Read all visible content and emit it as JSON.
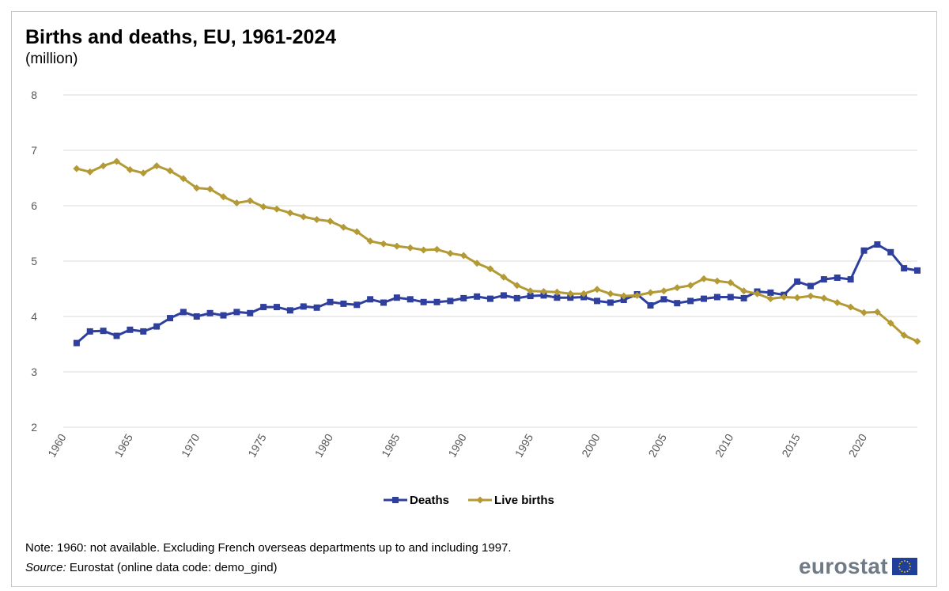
{
  "chart_data": {
    "type": "line",
    "title": "Births and deaths, EU, 1961-2024",
    "subtitle": "(million)",
    "xlabel": "",
    "ylabel": "",
    "ylim": [
      2,
      8
    ],
    "yticks": [
      2,
      3,
      4,
      5,
      6,
      7,
      8
    ],
    "xlim": [
      1960,
      2024
    ],
    "xticks": [
      1960,
      1965,
      1970,
      1975,
      1980,
      1985,
      1990,
      1995,
      2000,
      2005,
      2010,
      2015,
      2020
    ],
    "grid": "horizontal",
    "legend_position": "bottom",
    "x": [
      1961,
      1962,
      1963,
      1964,
      1965,
      1966,
      1967,
      1968,
      1969,
      1970,
      1971,
      1972,
      1973,
      1974,
      1975,
      1976,
      1977,
      1978,
      1979,
      1980,
      1981,
      1982,
      1983,
      1984,
      1985,
      1986,
      1987,
      1988,
      1989,
      1990,
      1991,
      1992,
      1993,
      1994,
      1995,
      1996,
      1997,
      1998,
      1999,
      2000,
      2001,
      2002,
      2003,
      2004,
      2005,
      2006,
      2007,
      2008,
      2009,
      2010,
      2011,
      2012,
      2013,
      2014,
      2015,
      2016,
      2017,
      2018,
      2019,
      2020,
      2021,
      2022,
      2023,
      2024
    ],
    "series": [
      {
        "name": "Deaths",
        "color": "#2e3f9e",
        "marker": "square",
        "values": [
          3.52,
          3.73,
          3.74,
          3.65,
          3.76,
          3.73,
          3.82,
          3.97,
          4.08,
          4.0,
          4.06,
          4.02,
          4.08,
          4.06,
          4.17,
          4.17,
          4.11,
          4.18,
          4.16,
          4.26,
          4.23,
          4.21,
          4.31,
          4.25,
          4.34,
          4.31,
          4.26,
          4.26,
          4.28,
          4.33,
          4.36,
          4.32,
          4.38,
          4.33,
          4.37,
          4.38,
          4.34,
          4.34,
          4.35,
          4.28,
          4.25,
          4.3,
          4.4,
          4.2,
          4.31,
          4.24,
          4.28,
          4.32,
          4.35,
          4.35,
          4.33,
          4.45,
          4.43,
          4.39,
          4.63,
          4.55,
          4.67,
          4.7,
          4.67,
          5.19,
          5.3,
          5.16,
          4.87,
          4.83
        ]
      },
      {
        "name": "Live births",
        "color": "#b39a35",
        "marker": "diamond",
        "values": [
          6.67,
          6.61,
          6.72,
          6.8,
          6.65,
          6.59,
          6.72,
          6.63,
          6.49,
          6.32,
          6.3,
          6.16,
          6.05,
          6.09,
          5.98,
          5.94,
          5.87,
          5.8,
          5.75,
          5.72,
          5.61,
          5.53,
          5.36,
          5.31,
          5.27,
          5.24,
          5.2,
          5.21,
          5.14,
          5.1,
          4.96,
          4.86,
          4.71,
          4.56,
          4.46,
          4.45,
          4.44,
          4.41,
          4.41,
          4.49,
          4.41,
          4.37,
          4.38,
          4.43,
          4.46,
          4.52,
          4.56,
          4.68,
          4.64,
          4.61,
          4.46,
          4.41,
          4.32,
          4.35,
          4.34,
          4.37,
          4.33,
          4.25,
          4.17,
          4.07,
          4.08,
          3.88,
          3.66,
          3.55
        ]
      }
    ]
  },
  "footer": {
    "note": "Note: 1960: not available. Excluding French overseas  departments up to and including 1997.",
    "source_label": "Source:",
    "source_text": " Eurostat (online data code: demo_gind)"
  },
  "logo": {
    "text": "eurostat"
  },
  "colors": {
    "grid": "#d9d9d9",
    "axis_text": "#595959",
    "logo_text": "#6f7a85",
    "flag": "#1f3f9b"
  }
}
